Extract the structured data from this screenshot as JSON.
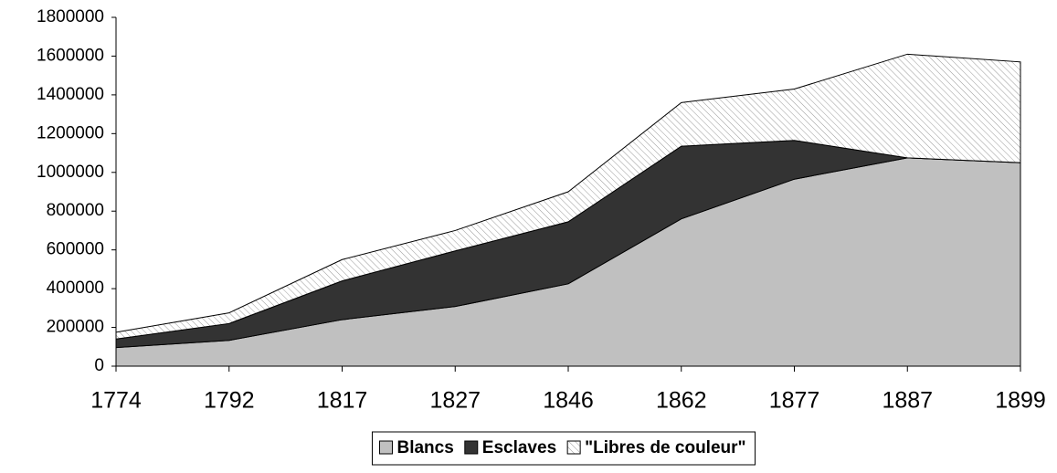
{
  "chart_data": {
    "type": "stacked_area",
    "categories": [
      "1774",
      "1792",
      "1817",
      "1827",
      "1846",
      "1862",
      "1877",
      "1887",
      "1899"
    ],
    "series": [
      {
        "name": "Blancs",
        "color": "#c0c0c0",
        "values": [
          96000,
          133000,
          240000,
          308000,
          425000,
          760000,
          965000,
          1075000,
          1050000
        ]
      },
      {
        "name": "Esclaves",
        "color": "#333333",
        "values": [
          44000,
          87000,
          200000,
          287000,
          320000,
          375000,
          200000,
          0,
          0
        ]
      },
      {
        "name": "\"Libres de couleur\"",
        "color": "#999999",
        "pattern": "hatch",
        "values": [
          35000,
          55000,
          110000,
          105000,
          155000,
          225000,
          265000,
          535000,
          520000
        ]
      }
    ],
    "ylim": [
      0,
      1800000
    ],
    "yticks": [
      0,
      200000,
      400000,
      600000,
      800000,
      1000000,
      1200000,
      1400000,
      1600000,
      1800000
    ],
    "legend": "bottom"
  }
}
